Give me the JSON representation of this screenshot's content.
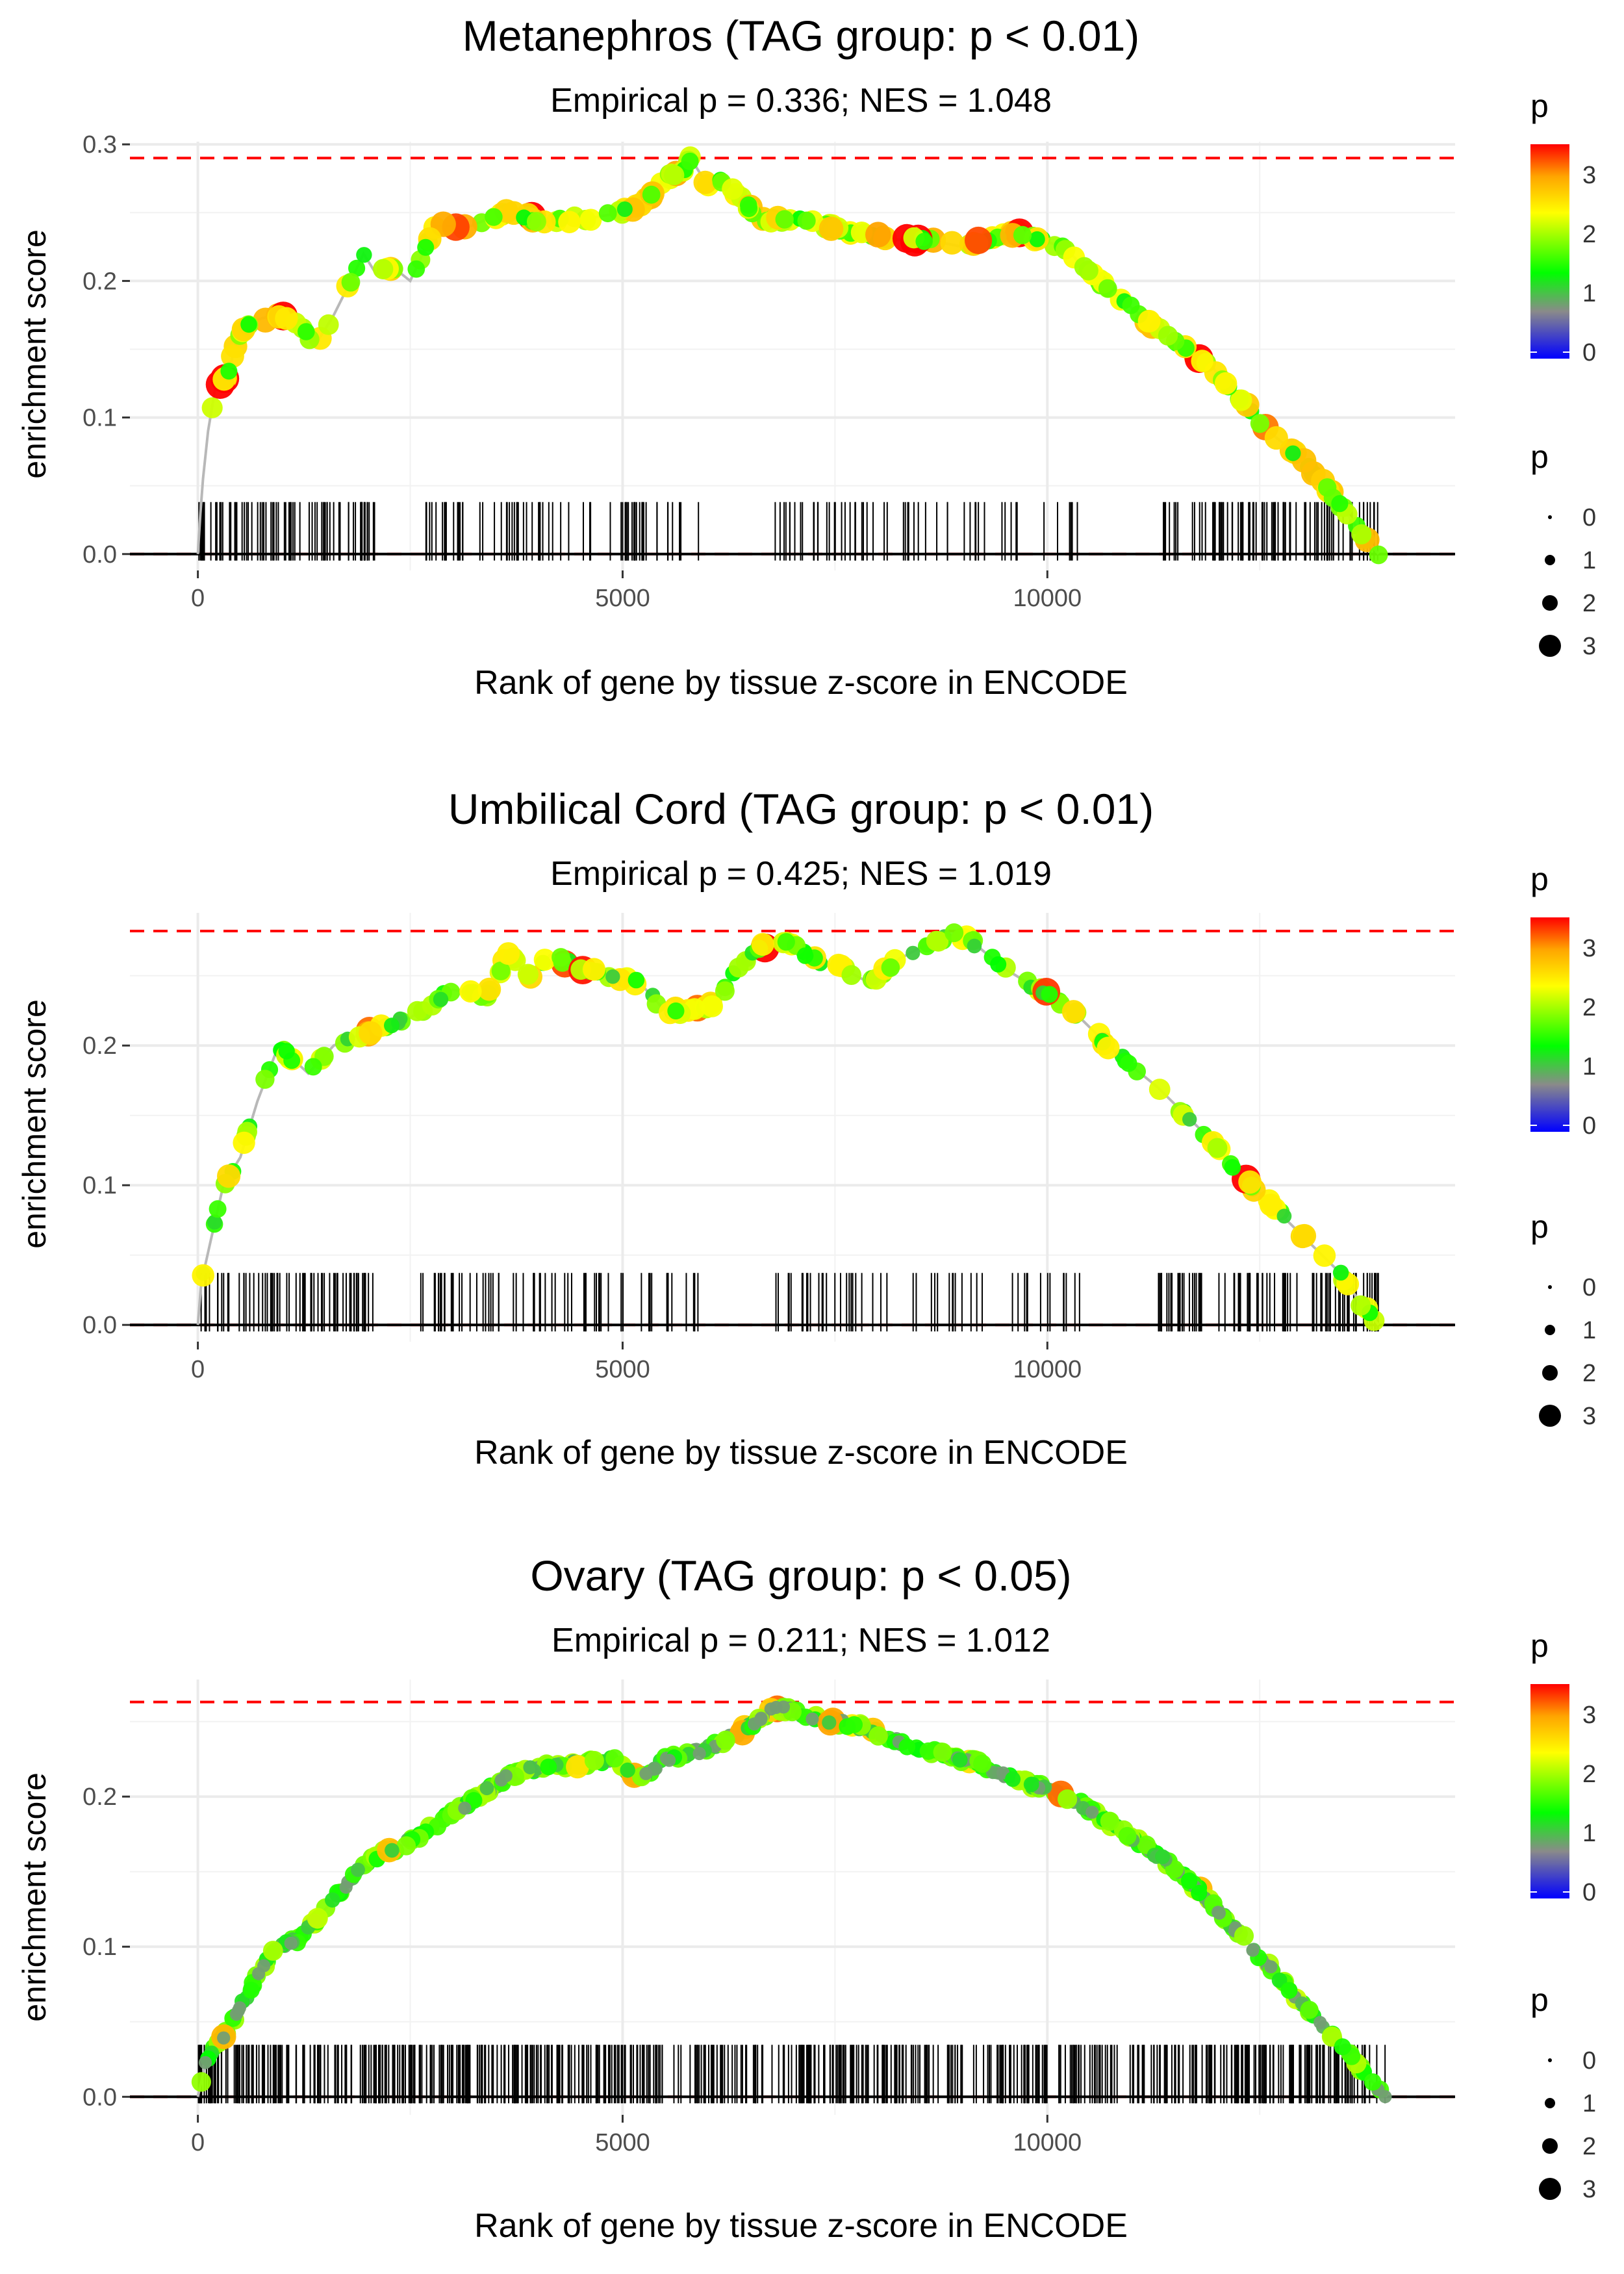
{
  "chart_data": [
    {
      "type": "scatter",
      "title": "Metanephros (TAG group: p < 0.01)",
      "subtitle": "Empirical p = 0.336; NES = 1.048",
      "xlabel": "Rank of gene by tissue z-score in ENCODE",
      "ylabel": "enrichment score",
      "xlim": [
        -800,
        14800
      ],
      "ylim": [
        -0.012,
        0.302
      ],
      "x_ticks": [
        0,
        5000,
        10000
      ],
      "x_tick_labels": [
        "0",
        "5000",
        "10000"
      ],
      "y_ticks": [
        0.0,
        0.1,
        0.2,
        0.3
      ],
      "y_tick_labels": [
        "0.0",
        "0.1",
        "0.2",
        "0.3"
      ],
      "max_es": 0.29,
      "n_genes": 13900,
      "path": [
        [
          0,
          0
        ],
        [
          30,
          0.03
        ],
        [
          60,
          0.055
        ],
        [
          120,
          0.09
        ],
        [
          200,
          0.12
        ],
        [
          350,
          0.13
        ],
        [
          450,
          0.155
        ],
        [
          600,
          0.17
        ],
        [
          900,
          0.175
        ],
        [
          1100,
          0.17
        ],
        [
          1300,
          0.16
        ],
        [
          1400,
          0.155
        ],
        [
          1600,
          0.175
        ],
        [
          1800,
          0.2
        ],
        [
          1950,
          0.22
        ],
        [
          2100,
          0.205
        ],
        [
          2300,
          0.21
        ],
        [
          2500,
          0.2
        ],
        [
          2800,
          0.24
        ],
        [
          3200,
          0.24
        ],
        [
          3600,
          0.25
        ],
        [
          4000,
          0.245
        ],
        [
          4500,
          0.245
        ],
        [
          5000,
          0.25
        ],
        [
          5300,
          0.26
        ],
        [
          5500,
          0.275
        ],
        [
          5700,
          0.28
        ],
        [
          5800,
          0.29
        ],
        [
          6000,
          0.27
        ],
        [
          6200,
          0.275
        ],
        [
          6600,
          0.245
        ],
        [
          7000,
          0.245
        ],
        [
          7400,
          0.24
        ],
        [
          7800,
          0.235
        ],
        [
          8200,
          0.23
        ],
        [
          8600,
          0.23
        ],
        [
          9000,
          0.225
        ],
        [
          9300,
          0.23
        ],
        [
          9600,
          0.235
        ],
        [
          9900,
          0.23
        ],
        [
          10200,
          0.225
        ],
        [
          10500,
          0.205
        ],
        [
          10900,
          0.185
        ],
        [
          11400,
          0.16
        ],
        [
          11900,
          0.14
        ],
        [
          12100,
          0.125
        ],
        [
          12600,
          0.09
        ],
        [
          13000,
          0.07
        ],
        [
          13400,
          0.04
        ],
        [
          13700,
          0.015
        ],
        [
          13900,
          0.0
        ]
      ],
      "seed": 11,
      "n_points": 230,
      "p_bias": 1.9,
      "n_ticks": 280,
      "tick_distribution": "clustered",
      "color_legend": {
        "title": "p",
        "ticks": [
          "0",
          "1",
          "2",
          "3"
        ],
        "max": 3.6
      },
      "size_legend": {
        "title": "p",
        "labels": [
          "0",
          "1",
          "2",
          "3"
        ]
      },
      "colors": {
        "threshold": "#ff0000",
        "line": "#b8b8b8",
        "ticks": "#000000",
        "grid": "#ebebeb"
      }
    },
    {
      "type": "scatter",
      "title": "Umbilical Cord (TAG group: p < 0.01)",
      "subtitle": "Empirical p = 0.425; NES = 1.019",
      "xlabel": "Rank of gene by tissue z-score in ENCODE",
      "ylabel": "enrichment score",
      "xlim": [
        -800,
        14800
      ],
      "ylim": [
        -0.012,
        0.295
      ],
      "x_ticks": [
        0,
        5000,
        10000
      ],
      "x_tick_labels": [
        "0",
        "5000",
        "10000"
      ],
      "y_ticks": [
        0.0,
        0.1,
        0.2
      ],
      "y_tick_labels": [
        "0.0",
        "0.1",
        "0.2"
      ],
      "max_es": 0.282,
      "n_genes": 13900,
      "path": [
        [
          0,
          0
        ],
        [
          40,
          0.03
        ],
        [
          150,
          0.06
        ],
        [
          300,
          0.1
        ],
        [
          500,
          0.12
        ],
        [
          700,
          0.16
        ],
        [
          950,
          0.2
        ],
        [
          1300,
          0.18
        ],
        [
          1600,
          0.2
        ],
        [
          2000,
          0.21
        ],
        [
          2500,
          0.22
        ],
        [
          3000,
          0.24
        ],
        [
          3400,
          0.235
        ],
        [
          3650,
          0.265
        ],
        [
          3900,
          0.25
        ],
        [
          4150,
          0.265
        ],
        [
          4500,
          0.255
        ],
        [
          4900,
          0.25
        ],
        [
          5200,
          0.245
        ],
        [
          5500,
          0.225
        ],
        [
          5800,
          0.225
        ],
        [
          6100,
          0.23
        ],
        [
          6300,
          0.25
        ],
        [
          6600,
          0.27
        ],
        [
          6900,
          0.275
        ],
        [
          7300,
          0.26
        ],
        [
          7600,
          0.255
        ],
        [
          7900,
          0.245
        ],
        [
          8200,
          0.26
        ],
        [
          8500,
          0.27
        ],
        [
          8900,
          0.28
        ],
        [
          9100,
          0.275
        ],
        [
          9500,
          0.255
        ],
        [
          9900,
          0.24
        ],
        [
          10300,
          0.225
        ],
        [
          10800,
          0.195
        ],
        [
          11300,
          0.17
        ],
        [
          11800,
          0.14
        ],
        [
          12400,
          0.1
        ],
        [
          12900,
          0.07
        ],
        [
          13400,
          0.04
        ],
        [
          13700,
          0.015
        ],
        [
          13900,
          0.0
        ]
      ],
      "seed": 23,
      "n_points": 210,
      "p_bias": 1.7,
      "n_ticks": 260,
      "tick_distribution": "clustered",
      "color_legend": {
        "title": "p",
        "ticks": [
          "0",
          "1",
          "2",
          "3"
        ],
        "max": 3.6
      },
      "size_legend": {
        "title": "p",
        "labels": [
          "0",
          "1",
          "2",
          "3"
        ]
      },
      "colors": {
        "threshold": "#ff0000",
        "line": "#b8b8b8",
        "ticks": "#000000",
        "grid": "#ebebeb"
      }
    },
    {
      "type": "scatter",
      "title": "Ovary (TAG group: p < 0.05)",
      "subtitle": "Empirical p = 0.211; NES = 1.012",
      "xlabel": "Rank of gene by tissue z-score in ENCODE",
      "ylabel": "enrichment score",
      "xlim": [
        -800,
        14800
      ],
      "ylim": [
        -0.012,
        0.278
      ],
      "x_ticks": [
        0,
        5000,
        10000
      ],
      "x_tick_labels": [
        "0",
        "5000",
        "10000"
      ],
      "y_ticks": [
        0.0,
        0.1,
        0.2
      ],
      "y_tick_labels": [
        "0.0",
        "0.1",
        "0.2"
      ],
      "max_es": 0.263,
      "n_genes": 14000,
      "path": [
        [
          0,
          0
        ],
        [
          100,
          0.025
        ],
        [
          300,
          0.04
        ],
        [
          500,
          0.06
        ],
        [
          700,
          0.08
        ],
        [
          900,
          0.1
        ],
        [
          1200,
          0.105
        ],
        [
          1500,
          0.125
        ],
        [
          1800,
          0.145
        ],
        [
          2100,
          0.16
        ],
        [
          2500,
          0.17
        ],
        [
          2900,
          0.185
        ],
        [
          3300,
          0.2
        ],
        [
          3700,
          0.215
        ],
        [
          4100,
          0.22
        ],
        [
          4500,
          0.222
        ],
        [
          4900,
          0.224
        ],
        [
          5200,
          0.212
        ],
        [
          5500,
          0.225
        ],
        [
          5900,
          0.23
        ],
        [
          6300,
          0.24
        ],
        [
          6600,
          0.25
        ],
        [
          6800,
          0.26
        ],
        [
          7100,
          0.255
        ],
        [
          7500,
          0.25
        ],
        [
          7900,
          0.245
        ],
        [
          8300,
          0.235
        ],
        [
          8800,
          0.228
        ],
        [
          9200,
          0.222
        ],
        [
          9600,
          0.212
        ],
        [
          10000,
          0.205
        ],
        [
          10400,
          0.195
        ],
        [
          10800,
          0.18
        ],
        [
          11200,
          0.165
        ],
        [
          11600,
          0.148
        ],
        [
          12000,
          0.125
        ],
        [
          12400,
          0.1
        ],
        [
          12800,
          0.075
        ],
        [
          13200,
          0.05
        ],
        [
          13600,
          0.025
        ],
        [
          13900,
          0.005
        ],
        [
          14000,
          0.0
        ]
      ],
      "seed": 37,
      "n_points": 520,
      "p_bias": 1.1,
      "n_ticks": 620,
      "tick_distribution": "uniform",
      "color_legend": {
        "title": "p",
        "ticks": [
          "0",
          "1",
          "2",
          "3"
        ],
        "max": 3.6
      },
      "size_legend": {
        "title": "p",
        "labels": [
          "0",
          "1",
          "2",
          "3"
        ]
      },
      "colors": {
        "threshold": "#ff0000",
        "line": "#b8b8b8",
        "ticks": "#000000",
        "grid": "#ebebeb"
      }
    }
  ]
}
